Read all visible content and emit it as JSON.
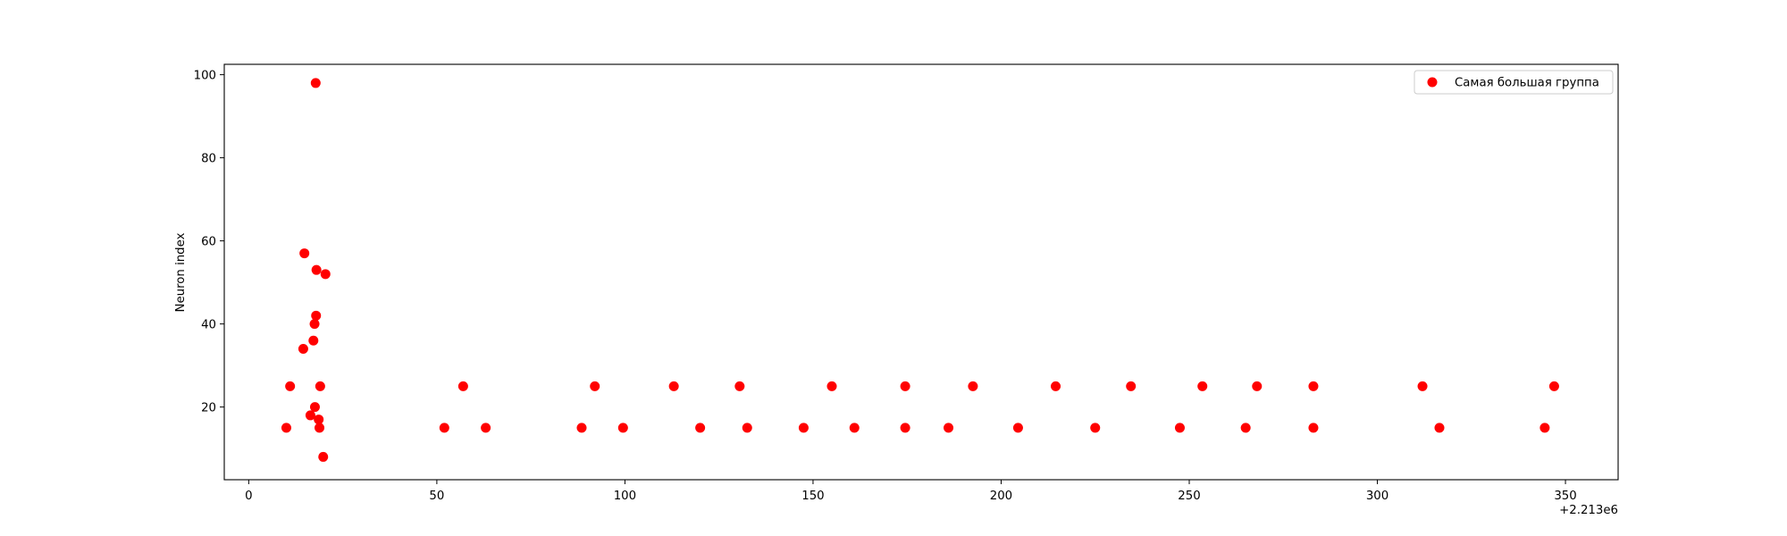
{
  "chart_data": {
    "type": "scatter",
    "title": "",
    "xlabel": "",
    "ylabel": "Neuron index",
    "x_offset_label": "+2.213e6",
    "xlim": [
      -6.5,
      364
    ],
    "ylim": [
      2.5,
      102.5
    ],
    "xticks": [
      0,
      50,
      100,
      150,
      200,
      250,
      300,
      350
    ],
    "yticks": [
      20,
      40,
      60,
      80,
      100
    ],
    "grid": false,
    "legend": {
      "placement": "upper right",
      "entries": [
        "Самая большая группа"
      ]
    },
    "series": [
      {
        "name": "Самая большая группа",
        "color": "#ff0000",
        "marker": "circle",
        "points": [
          {
            "x": 10,
            "y": 15
          },
          {
            "x": 11,
            "y": 25
          },
          {
            "x": 14.5,
            "y": 34
          },
          {
            "x": 14.8,
            "y": 57
          },
          {
            "x": 16.4,
            "y": 18
          },
          {
            "x": 17.2,
            "y": 36
          },
          {
            "x": 17.5,
            "y": 40
          },
          {
            "x": 17.6,
            "y": 20
          },
          {
            "x": 17.8,
            "y": 98
          },
          {
            "x": 17.9,
            "y": 42
          },
          {
            "x": 18,
            "y": 53
          },
          {
            "x": 18.6,
            "y": 17
          },
          {
            "x": 18.8,
            "y": 15
          },
          {
            "x": 19,
            "y": 25
          },
          {
            "x": 19.8,
            "y": 8
          },
          {
            "x": 20.4,
            "y": 52
          },
          {
            "x": 52,
            "y": 15
          },
          {
            "x": 57,
            "y": 25
          },
          {
            "x": 63,
            "y": 15
          },
          {
            "x": 88.5,
            "y": 15
          },
          {
            "x": 92,
            "y": 25
          },
          {
            "x": 99.5,
            "y": 15
          },
          {
            "x": 113,
            "y": 25
          },
          {
            "x": 120,
            "y": 15
          },
          {
            "x": 130.5,
            "y": 25
          },
          {
            "x": 132.5,
            "y": 15
          },
          {
            "x": 147.5,
            "y": 15
          },
          {
            "x": 155,
            "y": 25
          },
          {
            "x": 161,
            "y": 15
          },
          {
            "x": 174.5,
            "y": 25
          },
          {
            "x": 174.5,
            "y": 15
          },
          {
            "x": 186,
            "y": 15
          },
          {
            "x": 192.5,
            "y": 25
          },
          {
            "x": 204.5,
            "y": 15
          },
          {
            "x": 214.5,
            "y": 25
          },
          {
            "x": 225,
            "y": 15
          },
          {
            "x": 234.5,
            "y": 25
          },
          {
            "x": 247.5,
            "y": 15
          },
          {
            "x": 253.5,
            "y": 25
          },
          {
            "x": 265,
            "y": 15
          },
          {
            "x": 268,
            "y": 25
          },
          {
            "x": 283,
            "y": 25
          },
          {
            "x": 283,
            "y": 15
          },
          {
            "x": 312,
            "y": 25
          },
          {
            "x": 316.5,
            "y": 15
          },
          {
            "x": 344.5,
            "y": 15
          },
          {
            "x": 347,
            "y": 25
          }
        ]
      }
    ]
  }
}
